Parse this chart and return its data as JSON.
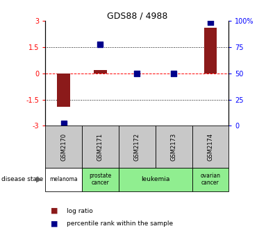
{
  "title": "GDS88 / 4988",
  "samples": [
    "GSM2170",
    "GSM2171",
    "GSM2172",
    "GSM2173",
    "GSM2174"
  ],
  "log_ratio": [
    -1.9,
    0.2,
    0.0,
    0.0,
    2.6
  ],
  "percentile_rank": [
    2.0,
    78.0,
    50.0,
    50.0,
    99.0
  ],
  "disease_state": [
    "melanoma",
    "prostate cancer",
    "leukemia",
    "leukemia",
    "ovarian cancer"
  ],
  "disease_color_map": {
    "melanoma": "#ffffff",
    "prostate cancer": "#90ee90",
    "leukemia": "#90ee90",
    "ovarian cancer": "#90ee90"
  },
  "ylim_left": [
    -3,
    3
  ],
  "yticks_left": [
    -3,
    -1.5,
    0,
    1.5,
    3
  ],
  "ytick_labels_left": [
    "-3",
    "-1.5",
    "0",
    "1.5",
    "3"
  ],
  "yticks_right": [
    0,
    25,
    50,
    75,
    100
  ],
  "ytick_labels_right": [
    "0",
    "25",
    "50",
    "75",
    "100%"
  ],
  "bar_color": "#8b1a1a",
  "dot_color": "#00008b",
  "bar_width": 0.35,
  "dot_size": 30,
  "sample_box_color": "#c8c8c8"
}
